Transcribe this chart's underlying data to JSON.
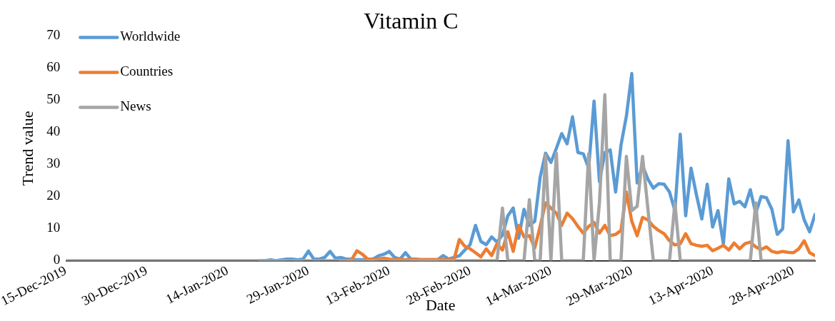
{
  "chart_data": {
    "type": "line",
    "title": "Vitamin C",
    "xlabel": "Date",
    "ylabel": "Trend value",
    "x": [
      "2019-12-15",
      "2019-12-16",
      "2019-12-17",
      "2019-12-18",
      "2019-12-19",
      "2019-12-20",
      "2019-12-21",
      "2019-12-22",
      "2019-12-23",
      "2019-12-24",
      "2019-12-25",
      "2019-12-26",
      "2019-12-27",
      "2019-12-28",
      "2019-12-29",
      "2019-12-30",
      "2019-12-31",
      "2020-01-01",
      "2020-01-02",
      "2020-01-03",
      "2020-01-04",
      "2020-01-05",
      "2020-01-06",
      "2020-01-07",
      "2020-01-08",
      "2020-01-09",
      "2020-01-10",
      "2020-01-11",
      "2020-01-12",
      "2020-01-13",
      "2020-01-14",
      "2020-01-15",
      "2020-01-16",
      "2020-01-17",
      "2020-01-18",
      "2020-01-19",
      "2020-01-20",
      "2020-01-21",
      "2020-01-22",
      "2020-01-23",
      "2020-01-24",
      "2020-01-25",
      "2020-01-26",
      "2020-01-27",
      "2020-01-28",
      "2020-01-29",
      "2020-01-30",
      "2020-01-31",
      "2020-02-01",
      "2020-02-02",
      "2020-02-03",
      "2020-02-04",
      "2020-02-05",
      "2020-02-06",
      "2020-02-07",
      "2020-02-08",
      "2020-02-09",
      "2020-02-10",
      "2020-02-11",
      "2020-02-12",
      "2020-02-13",
      "2020-02-14",
      "2020-02-15",
      "2020-02-16",
      "2020-02-17",
      "2020-02-18",
      "2020-02-19",
      "2020-02-20",
      "2020-02-21",
      "2020-02-22",
      "2020-02-23",
      "2020-02-24",
      "2020-02-25",
      "2020-02-26",
      "2020-02-27",
      "2020-02-28",
      "2020-02-29",
      "2020-03-01",
      "2020-03-02",
      "2020-03-03",
      "2020-03-04",
      "2020-03-05",
      "2020-03-06",
      "2020-03-07",
      "2020-03-08",
      "2020-03-09",
      "2020-03-10",
      "2020-03-11",
      "2020-03-12",
      "2020-03-13",
      "2020-03-14",
      "2020-03-15",
      "2020-03-16",
      "2020-03-17",
      "2020-03-18",
      "2020-03-19",
      "2020-03-20",
      "2020-03-21",
      "2020-03-22",
      "2020-03-23",
      "2020-03-24",
      "2020-03-25",
      "2020-03-26",
      "2020-03-27",
      "2020-03-28",
      "2020-03-29",
      "2020-03-30",
      "2020-03-31",
      "2020-04-01",
      "2020-04-02",
      "2020-04-03",
      "2020-04-04",
      "2020-04-05",
      "2020-04-06",
      "2020-04-07",
      "2020-04-08",
      "2020-04-09",
      "2020-04-10",
      "2020-04-11",
      "2020-04-12",
      "2020-04-13",
      "2020-04-14",
      "2020-04-15",
      "2020-04-16",
      "2020-04-17",
      "2020-04-18",
      "2020-04-19",
      "2020-04-20",
      "2020-04-21",
      "2020-04-22",
      "2020-04-23",
      "2020-04-24",
      "2020-04-25",
      "2020-04-26",
      "2020-04-27",
      "2020-04-28",
      "2020-04-29",
      "2020-04-30",
      "2020-05-01",
      "2020-05-02"
    ],
    "series": [
      {
        "name": "Worldwide",
        "color": "#5b9bd5",
        "values": [
          null,
          null,
          null,
          null,
          null,
          null,
          null,
          null,
          null,
          null,
          null,
          null,
          null,
          null,
          null,
          null,
          null,
          null,
          null,
          null,
          null,
          null,
          null,
          null,
          null,
          null,
          null,
          null,
          null,
          null,
          null,
          null,
          null,
          null,
          null,
          null,
          0,
          0,
          0.3,
          0,
          0.3,
          0.5,
          0.5,
          0.3,
          0.5,
          3,
          0.5,
          0.5,
          1,
          2.9,
          0.8,
          1,
          0.5,
          0.5,
          0.3,
          0.3,
          0.5,
          0.5,
          1.5,
          2,
          2.9,
          1,
          0.5,
          2.5,
          0.5,
          0.5,
          0.3,
          0.3,
          0.3,
          0.3,
          1.6,
          0.5,
          1,
          1.5,
          3.3,
          5,
          11,
          6,
          5,
          7.4,
          5.8,
          8,
          14,
          16.4,
          7,
          16,
          11,
          12.3,
          26,
          33.5,
          30.6,
          35,
          39.6,
          36.4,
          44.8,
          33.7,
          33.3,
          28.8,
          49.7,
          24.6,
          33.7,
          34.5,
          21.4,
          36,
          45,
          58.3,
          24.2,
          29.5,
          25.4,
          22.6,
          24,
          23.8,
          21.4,
          15.6,
          39.4,
          14,
          28.8,
          20.5,
          13,
          23.8,
          10.5,
          15.6,
          5.3,
          25.5,
          17.7,
          18.5,
          16.8,
          22.1,
          14.8,
          20,
          19.6,
          16,
          8.2,
          9.9,
          37.4,
          15.2,
          18.9,
          12.7,
          9,
          14.4
        ]
      },
      {
        "name": "Countries",
        "color": "#ed7d31",
        "values": [
          null,
          null,
          null,
          null,
          null,
          null,
          null,
          null,
          null,
          null,
          null,
          null,
          null,
          null,
          null,
          null,
          null,
          null,
          null,
          null,
          null,
          null,
          null,
          null,
          null,
          null,
          null,
          null,
          null,
          null,
          null,
          null,
          null,
          null,
          null,
          null,
          null,
          null,
          null,
          null,
          null,
          null,
          null,
          null,
          null,
          null,
          null,
          null,
          null,
          null,
          null,
          0,
          0,
          0.3,
          3.1,
          2,
          0.5,
          0.3,
          0.5,
          0.8,
          0.5,
          0.3,
          0.5,
          0.3,
          0.3,
          0.3,
          0.3,
          0.3,
          0.3,
          0.3,
          0.3,
          0.3,
          0.3,
          6.6,
          4.5,
          3.7,
          2.5,
          1.2,
          3.7,
          1.6,
          5.3,
          3.3,
          9,
          2.9,
          11,
          7.4,
          7.8,
          4,
          10.7,
          18,
          16.4,
          14.8,
          11,
          14.8,
          13.1,
          10.7,
          8.6,
          10.7,
          11.9,
          8.6,
          11,
          7.8,
          8.2,
          9.4,
          21.4,
          12.3,
          7.8,
          13.5,
          12.7,
          10.7,
          9.4,
          8.4,
          6.2,
          4.9,
          5.3,
          8.4,
          5.3,
          4.8,
          4.5,
          4.8,
          3.1,
          3.9,
          4.8,
          3.3,
          5.5,
          3.7,
          5.3,
          5.8,
          4.3,
          3.5,
          4.3,
          2.9,
          2.5,
          2.9,
          2.6,
          2.5,
          3.7,
          6.2,
          2.5,
          1.6
        ]
      },
      {
        "name": "News",
        "color": "#a5a5a5",
        "values": [
          0,
          0,
          0,
          0,
          0,
          0,
          0,
          0,
          0,
          0,
          0,
          0,
          0,
          0,
          0,
          0,
          0,
          0,
          0,
          0,
          0,
          0,
          0,
          0,
          0,
          0,
          0,
          0,
          0,
          0,
          0,
          0,
          0,
          0,
          0,
          0,
          0,
          0,
          0,
          0,
          0,
          0,
          0,
          0,
          0,
          0,
          0,
          0,
          0,
          0,
          0,
          0,
          0,
          0,
          0,
          0,
          0,
          0,
          0,
          0,
          0,
          0,
          0,
          0,
          0,
          0,
          0,
          0,
          0,
          0,
          0,
          0,
          0,
          0,
          0,
          0,
          0,
          0,
          0,
          0,
          0,
          16.4,
          0,
          0,
          0,
          0,
          19,
          0,
          0,
          32.9,
          0,
          33.5,
          0,
          0,
          0,
          0,
          0,
          33.3,
          0,
          18,
          51.7,
          0,
          0,
          0,
          32.5,
          15.6,
          17,
          32.5,
          16,
          0,
          0,
          0,
          0,
          18,
          0,
          0,
          0,
          0,
          0,
          0,
          0,
          0,
          0,
          0,
          0,
          0,
          0,
          0,
          18,
          0,
          0,
          0,
          0,
          0,
          0,
          0,
          0,
          0,
          0,
          0
        ]
      }
    ],
    "xlim": [
      "2019-12-15",
      "2020-05-02"
    ],
    "xticks": [
      {
        "value": "2019-12-15",
        "label": "15-Dec-2019"
      },
      {
        "value": "2019-12-30",
        "label": "30-Dec-2019"
      },
      {
        "value": "2020-01-14",
        "label": "14-Jan-2020"
      },
      {
        "value": "2020-01-29",
        "label": "29-Jan-2020"
      },
      {
        "value": "2020-02-13",
        "label": "13-Feb-2020"
      },
      {
        "value": "2020-02-28",
        "label": "28-Feb-2020"
      },
      {
        "value": "2020-03-14",
        "label": "14-Mar-2020"
      },
      {
        "value": "2020-03-29",
        "label": "29-Mar-2020"
      },
      {
        "value": "2020-04-13",
        "label": "13-Apr-2020"
      },
      {
        "value": "2020-04-28",
        "label": "28-Apr-2020"
      }
    ],
    "ylim": [
      0,
      70
    ],
    "yticks": [
      0,
      10,
      20,
      30,
      40,
      50,
      60,
      70
    ],
    "legend": "top left",
    "grid": false,
    "marker": "none",
    "line_style": "solid"
  }
}
